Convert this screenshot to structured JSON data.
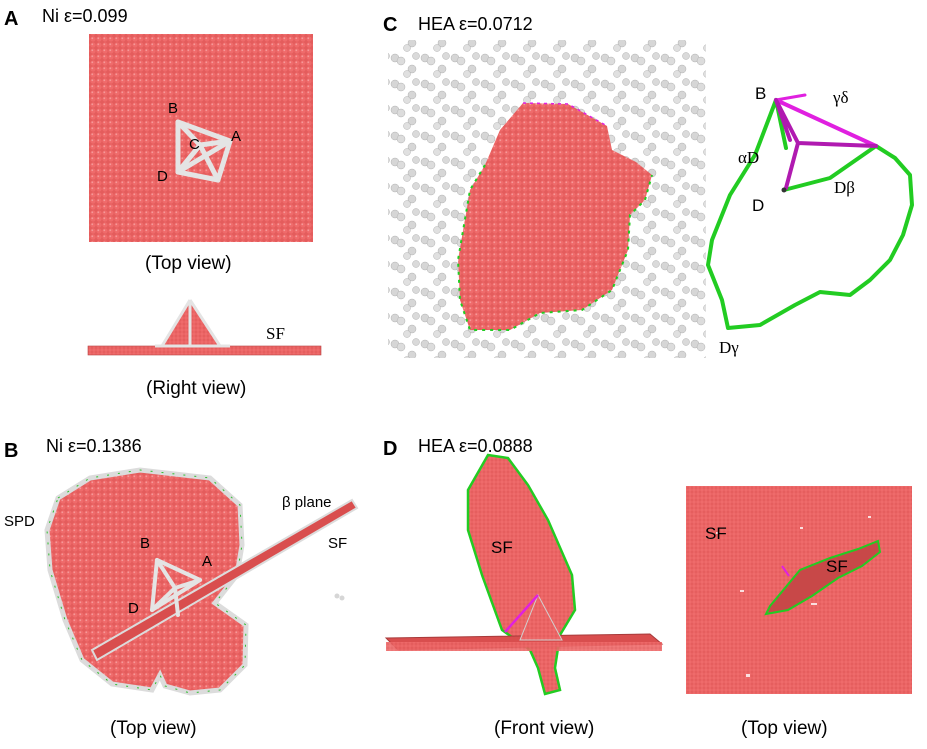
{
  "panels": {
    "A": {
      "letter": "A",
      "title": "Ni ε=0.099",
      "top_caption": "(Top view)",
      "right_caption": "(Right view)",
      "nodes": {
        "B": "B",
        "C": "C",
        "A": "A",
        "D": "D"
      },
      "sf_label": "SF"
    },
    "B": {
      "letter": "B",
      "title": "Ni ε=0.1386",
      "caption": "(Top view)",
      "labels": {
        "spd": "SPD",
        "beta_plane": "β plane",
        "sf": "SF",
        "B": "B",
        "A": "A",
        "D": "D"
      }
    },
    "C": {
      "letter": "C",
      "title": "HEA ε=0.0712",
      "labels": {
        "B": "B",
        "gamma_delta": "γδ",
        "alpha_d": "αD",
        "d": "D",
        "d_beta": "Dβ",
        "d_gamma": "Dγ"
      }
    },
    "D": {
      "letter": "D",
      "title": "HEA ε=0.0888",
      "front_caption": "(Front view)",
      "top_caption": "(Top view)",
      "labels": {
        "sf_front": "SF",
        "sf_top_left": "SF",
        "sf_top_center": "SF"
      }
    }
  },
  "colors": {
    "atom_red": "#e8585a",
    "atom_white": "#d9d9d9",
    "dislocation_green": "#22cc22",
    "dislocation_magenta": "#e020e0",
    "dislocation_purple": "#b01ab0"
  }
}
